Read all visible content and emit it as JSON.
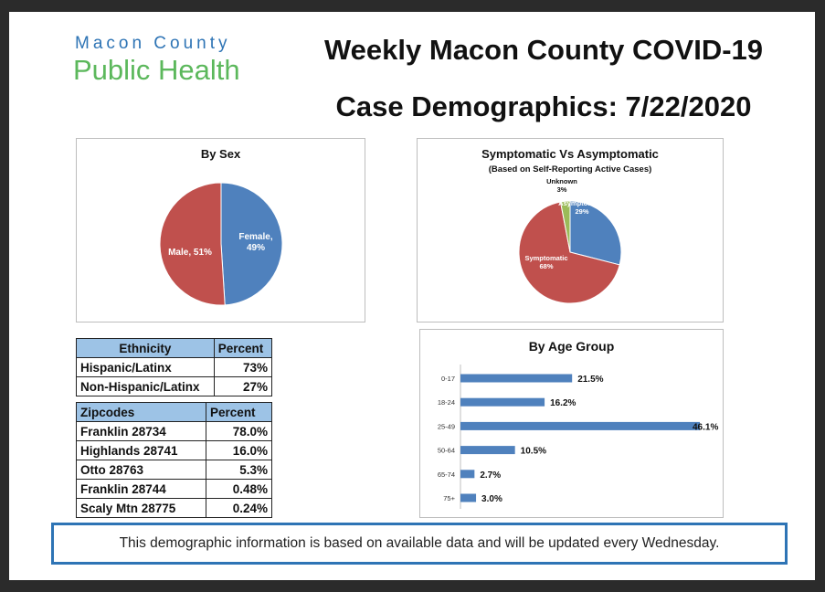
{
  "header": {
    "logo_line1": "Macon County",
    "logo_line2": "Public Health",
    "title_line1": "Weekly Macon County COVID-19",
    "title_line2": "Case Demographics: 7/22/2020"
  },
  "colors": {
    "blue": "#4f81bd",
    "red": "#c0504d",
    "green": "#9bbb59",
    "header_fill": "#9dc3e6"
  },
  "chart_data": [
    {
      "type": "pie",
      "title": "By Sex",
      "slices": [
        {
          "label": "Female, 49%",
          "name": "Female",
          "value": 49
        },
        {
          "label": "Male, 51%",
          "name": "Male",
          "value": 51
        }
      ]
    },
    {
      "type": "pie",
      "title": "Symptomatic Vs Asymptomatic",
      "subtitle": "(Based on Self-Reporting Active Cases)",
      "slices": [
        {
          "name": "Asymptomatic",
          "label": "29%",
          "value": 29
        },
        {
          "name": "Symptomatic",
          "label": "68%",
          "value": 68
        },
        {
          "name": "Unknown",
          "label": "3%",
          "value": 3
        }
      ]
    },
    {
      "type": "bar",
      "orientation": "horizontal",
      "title": "By Age Group",
      "categories": [
        "0-17",
        "18-24",
        "25-49",
        "50-64",
        "65-74",
        "75+"
      ],
      "values": [
        21.5,
        16.2,
        46.1,
        10.5,
        2.7,
        3.0
      ],
      "labels": [
        "21.5%",
        "16.2%",
        "46.1%",
        "10.5%",
        "2.7%",
        "3.0%"
      ],
      "xlim": [
        0,
        46.1
      ]
    }
  ],
  "ethnicity_table": {
    "headers": [
      "Ethnicity",
      "Percent"
    ],
    "rows": [
      [
        "Hispanic/Latinx",
        "73%"
      ],
      [
        "Non-Hispanic/Latinx",
        "27%"
      ]
    ]
  },
  "zipcode_table": {
    "headers": [
      "Zipcodes",
      "Percent"
    ],
    "rows": [
      [
        "Franklin 28734",
        "78.0%"
      ],
      [
        "Highlands 28741",
        "16.0%"
      ],
      [
        "Otto 28763",
        "5.3%"
      ],
      [
        "Franklin 28744",
        "0.48%"
      ],
      [
        "Scaly Mtn 28775",
        "0.24%"
      ]
    ]
  },
  "footer": {
    "text": "This demographic information is based on available data and will be updated every Wednesday."
  }
}
